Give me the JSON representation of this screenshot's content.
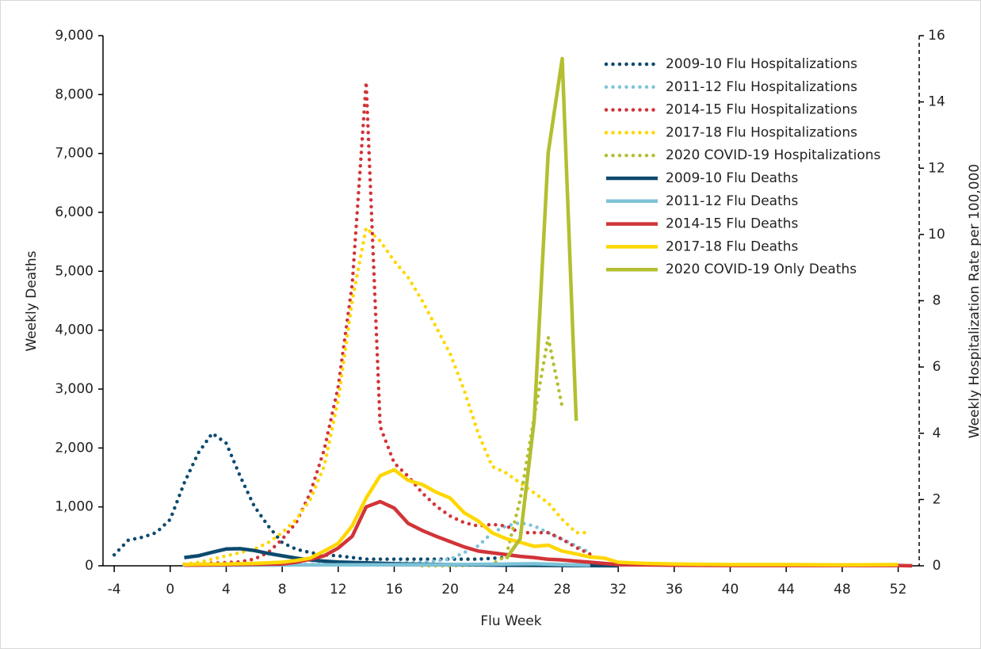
{
  "chart_data": {
    "type": "line",
    "xlabel": "Flu Week",
    "ylabel": "Weekly Deaths",
    "y2label": "Weekly Hospitalization Rate per 100,000",
    "xlim": [
      -4.8,
      53.5
    ],
    "xticks": [
      -4,
      0,
      4,
      8,
      12,
      16,
      20,
      24,
      28,
      32,
      36,
      40,
      44,
      48,
      52
    ],
    "ylim": [
      0,
      9000
    ],
    "yticks": [
      0,
      {
        "value": 1000,
        "label": "1,000"
      },
      {
        "value": 2000,
        "label": "2,000"
      },
      {
        "value": 3000,
        "label": "3,000"
      },
      {
        "value": 4000,
        "label": "4,000"
      },
      {
        "value": 5000,
        "label": "5,000"
      },
      {
        "value": 6000,
        "label": "6,000"
      },
      {
        "value": 7000,
        "label": "7,000"
      },
      {
        "value": 8000,
        "label": "8,000"
      },
      {
        "value": 9000,
        "label": "9,000"
      }
    ],
    "y2lim": [
      0,
      16
    ],
    "y2ticks": [
      0,
      2,
      4,
      6,
      8,
      10,
      12,
      14,
      16
    ],
    "legend": "upper right",
    "series": [
      {
        "name": "2009-10 Flu Hospitalizations",
        "color": "#0d4a6e",
        "dash": "dotted",
        "axis": "y2",
        "x": [
          -4,
          -3,
          -2,
          -1,
          0,
          1,
          2,
          3,
          4,
          5,
          6,
          7,
          8,
          9,
          10,
          11,
          12,
          14,
          16,
          18,
          20,
          22,
          24
        ],
        "values": [
          0.33,
          0.77,
          0.86,
          1.0,
          1.4,
          2.5,
          3.4,
          4.0,
          3.7,
          2.7,
          1.8,
          1.2,
          0.7,
          0.5,
          0.4,
          0.33,
          0.3,
          0.2,
          0.2,
          0.2,
          0.2,
          0.2,
          0.25
        ]
      },
      {
        "name": "2011-12 Flu Hospitalizations",
        "color": "#7dc3d8",
        "dash": "dotted",
        "axis": "y2",
        "x": [
          1,
          4,
          8,
          12,
          16,
          18,
          20,
          22,
          23,
          24,
          25,
          26,
          27,
          28,
          29,
          30
        ],
        "values": [
          0.02,
          0.03,
          0.04,
          0.05,
          0.08,
          0.1,
          0.2,
          0.6,
          1.0,
          1.2,
          1.3,
          1.2,
          1.0,
          0.8,
          0.6,
          0.4
        ]
      },
      {
        "name": "2014-15 Flu Hospitalizations",
        "color": "#d13438",
        "dash": "dotted",
        "axis": "y2",
        "x": [
          1,
          3,
          5,
          6,
          7,
          8,
          9,
          10,
          11,
          12,
          13,
          14,
          15,
          16,
          17,
          18,
          19,
          20,
          21,
          22,
          23,
          24,
          25,
          26,
          27,
          28,
          29,
          30
        ],
        "values": [
          0.05,
          0.08,
          0.12,
          0.2,
          0.4,
          0.8,
          1.3,
          2.2,
          3.5,
          5.4,
          8.5,
          14.6,
          4.2,
          3.1,
          2.7,
          2.2,
          1.8,
          1.5,
          1.3,
          1.2,
          1.25,
          1.2,
          1.0,
          1.0,
          1.0,
          0.8,
          0.55,
          0.35
        ]
      },
      {
        "name": "2017-18 Flu Hospitalizations",
        "color": "#ffd700",
        "dash": "dotted",
        "axis": "y2",
        "x": [
          1,
          2,
          3,
          4,
          5,
          6,
          7,
          8,
          9,
          10,
          11,
          12,
          13,
          14,
          15,
          16,
          17,
          18,
          19,
          20,
          21,
          22,
          23,
          24,
          25,
          26,
          27,
          28,
          29,
          30
        ],
        "values": [
          0.05,
          0.1,
          0.2,
          0.3,
          0.4,
          0.5,
          0.7,
          1.0,
          1.4,
          2.0,
          3.0,
          5.0,
          8.0,
          10.2,
          9.8,
          9.2,
          8.7,
          8.0,
          7.2,
          6.4,
          5.3,
          4.0,
          3.0,
          2.8,
          2.5,
          2.2,
          1.9,
          1.4,
          1.0,
          1.0
        ]
      },
      {
        "name": "2020 COVID-19 Hospitalizations",
        "color": "#b3bf30",
        "dash": "dotted",
        "axis": "y2",
        "x": [
          18,
          20,
          22,
          23,
          24,
          25,
          26,
          27,
          28
        ],
        "values": [
          0,
          0,
          0.02,
          0.05,
          0.3,
          2.0,
          4.5,
          6.9,
          4.8
        ]
      },
      {
        "name": "2009-10 Flu Deaths",
        "color": "#0d4a6e",
        "dash": "solid",
        "x": [
          1,
          2,
          3,
          4,
          5,
          6,
          7,
          8,
          9,
          10,
          11,
          12,
          14,
          16,
          20,
          24,
          28,
          32
        ],
        "values": [
          140,
          170,
          230,
          285,
          290,
          260,
          210,
          170,
          130,
          100,
          80,
          65,
          50,
          35,
          20,
          10,
          5,
          0
        ]
      },
      {
        "name": "2011-12 Flu Deaths",
        "color": "#7dc3d8",
        "dash": "solid",
        "x": [
          1,
          10,
          20,
          24,
          26,
          28,
          30
        ],
        "values": [
          10,
          15,
          20,
          30,
          35,
          20,
          10
        ]
      },
      {
        "name": "2014-15 Flu Deaths",
        "color": "#d13438",
        "dash": "solid",
        "x": [
          1,
          8,
          9,
          10,
          11,
          12,
          13,
          14,
          15,
          16,
          17,
          18,
          19,
          20,
          21,
          22,
          23,
          24,
          25,
          26,
          27,
          28,
          29,
          30,
          31,
          32,
          36,
          40,
          52,
          53
        ],
        "values": [
          10,
          30,
          60,
          110,
          170,
          300,
          500,
          1000,
          1090,
          980,
          720,
          600,
          500,
          410,
          320,
          250,
          220,
          190,
          160,
          140,
          110,
          100,
          80,
          60,
          40,
          20,
          10,
          5,
          5,
          0
        ]
      },
      {
        "name": "2017-18 Flu Deaths",
        "color": "#ffd700",
        "dash": "solid",
        "x": [
          1,
          2,
          4,
          6,
          8,
          9,
          10,
          11,
          12,
          13,
          14,
          15,
          16,
          17,
          18,
          19,
          20,
          21,
          22,
          23,
          24,
          25,
          26,
          27,
          28,
          29,
          30,
          31,
          32,
          34,
          36,
          40,
          44,
          48,
          52
        ],
        "values": [
          20,
          25,
          30,
          40,
          60,
          90,
          130,
          250,
          380,
          680,
          1150,
          1530,
          1630,
          1450,
          1380,
          1250,
          1150,
          900,
          760,
          560,
          460,
          400,
          330,
          350,
          250,
          200,
          150,
          130,
          60,
          40,
          30,
          20,
          20,
          15,
          20
        ]
      },
      {
        "name": "2020 COVID-19 Only Deaths",
        "color": "#b3bf30",
        "dash": "solid",
        "x": [
          24,
          25,
          26,
          27,
          28,
          29
        ],
        "values": [
          120,
          460,
          2480,
          7010,
          8610,
          2460
        ]
      }
    ]
  }
}
